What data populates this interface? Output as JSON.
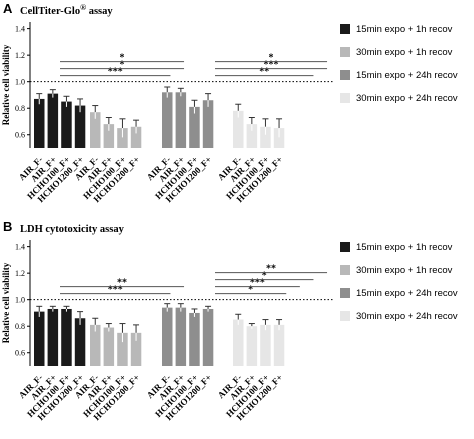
{
  "panels": [
    {
      "letter": "A",
      "title": "CellTiter-Glo",
      "title_sup": "®",
      "title_suffix": " assay"
    },
    {
      "letter": "B",
      "title": "LDH cytotoxicity assay",
      "title_sup": "",
      "title_suffix": ""
    }
  ],
  "colors": {
    "series": [
      "#1a1a1a",
      "#b8b8b8",
      "#8e8e8e",
      "#e6e6e6"
    ],
    "error_bar": "#333333",
    "sig_line": "#555555",
    "reference_line": "#000000"
  },
  "chart_data": [
    {
      "type": "bar",
      "title": "CellTiter-Glo® assay",
      "ylabel": "Relative cell viability",
      "ylim": [
        0.5,
        1.45
      ],
      "yticks": [
        0.6,
        0.8,
        1.0,
        1.2,
        1.4
      ],
      "reference_line": 1.0,
      "grid": false,
      "legend_position": "right",
      "categories": [
        "AIR_F-",
        "AIR_F+",
        "HCHO100_F+",
        "HCHO1200_F+"
      ],
      "series": [
        {
          "name": "15min expo + 1h recov",
          "values": [
            0.87,
            0.91,
            0.85,
            0.82
          ],
          "errors": [
            0.04,
            0.03,
            0.04,
            0.05
          ]
        },
        {
          "name": "30min expo + 1h recov",
          "values": [
            0.77,
            0.68,
            0.65,
            0.66
          ],
          "errors": [
            0.05,
            0.05,
            0.07,
            0.05
          ]
        },
        {
          "name": "15min expo + 24h recov",
          "values": [
            0.92,
            0.92,
            0.81,
            0.86
          ],
          "errors": [
            0.04,
            0.03,
            0.05,
            0.05
          ]
        },
        {
          "name": "30min expo + 24h recov",
          "values": [
            0.78,
            0.68,
            0.66,
            0.65
          ],
          "errors": [
            0.05,
            0.05,
            0.06,
            0.07
          ]
        }
      ],
      "significance": [
        {
          "series": 1,
          "from": 0,
          "to": 2,
          "label": "***"
        },
        {
          "series": 1,
          "from": 0,
          "to": 3,
          "label": "*"
        },
        {
          "series": 1,
          "from": 1,
          "to": 3,
          "label": "*"
        },
        {
          "series": 3,
          "from": 0,
          "to": 2,
          "label": "**"
        },
        {
          "series": 3,
          "from": 0,
          "to": 3,
          "label": "***"
        },
        {
          "series": 3,
          "from": 1,
          "to": 3,
          "label": "*"
        }
      ]
    },
    {
      "type": "bar",
      "title": "LDH cytotoxicity assay",
      "ylabel": "Relative cell viability",
      "ylim": [
        0.5,
        1.45
      ],
      "yticks": [
        0.6,
        0.8,
        1.0,
        1.2,
        1.4
      ],
      "reference_line": 1.0,
      "grid": false,
      "legend_position": "right",
      "categories": [
        "AIR_F-",
        "AIR_F+",
        "HCHO100_F+",
        "HCHO1200_F+"
      ],
      "series": [
        {
          "name": "15min expo + 1h recov",
          "values": [
            0.91,
            0.93,
            0.93,
            0.86
          ],
          "errors": [
            0.04,
            0.02,
            0.02,
            0.05
          ]
        },
        {
          "name": "30min expo + 1h recov",
          "values": [
            0.81,
            0.79,
            0.75,
            0.75
          ],
          "errors": [
            0.05,
            0.03,
            0.07,
            0.06
          ]
        },
        {
          "name": "15min expo + 24h recov",
          "values": [
            0.94,
            0.94,
            0.9,
            0.93
          ],
          "errors": [
            0.03,
            0.03,
            0.03,
            0.02
          ]
        },
        {
          "name": "30min expo + 24h recov",
          "values": [
            0.85,
            0.8,
            0.81,
            0.81
          ],
          "errors": [
            0.04,
            0.02,
            0.04,
            0.04
          ]
        }
      ],
      "significance": [
        {
          "series": 1,
          "from": 0,
          "to": 2,
          "label": "***"
        },
        {
          "series": 1,
          "from": 0,
          "to": 3,
          "label": "**"
        },
        {
          "series": 3,
          "from": 0,
          "to": 0,
          "label": "*"
        },
        {
          "series": 3,
          "from": 0,
          "to": 1,
          "label": "***"
        },
        {
          "series": 3,
          "from": 0,
          "to": 2,
          "label": "*"
        },
        {
          "series": 3,
          "from": 0,
          "to": 3,
          "label": "**"
        }
      ]
    }
  ]
}
